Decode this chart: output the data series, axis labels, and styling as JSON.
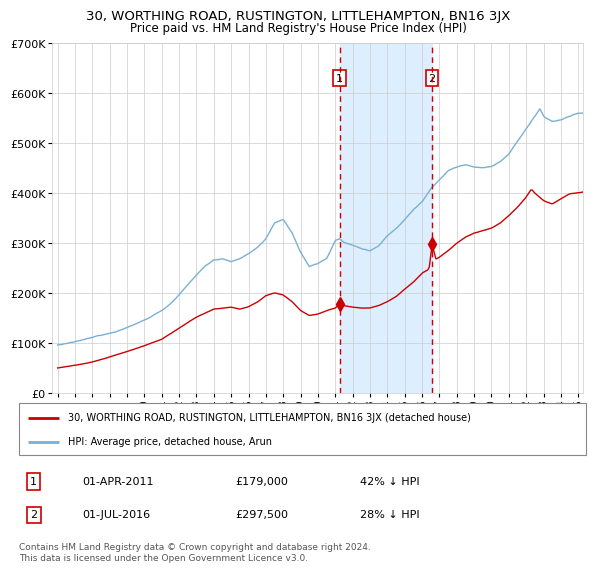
{
  "title": "30, WORTHING ROAD, RUSTINGTON, LITTLEHAMPTON, BN16 3JX",
  "subtitle": "Price paid vs. HM Land Registry's House Price Index (HPI)",
  "ylim": [
    0,
    700000
  ],
  "xlim_start": 1994.7,
  "xlim_end": 2025.3,
  "transaction1": {
    "date_num": 2011.25,
    "price": 179000,
    "label": "1",
    "date_str": "01-APR-2011",
    "pct": "42% ↓ HPI"
  },
  "transaction2": {
    "date_num": 2016.58,
    "price": 297500,
    "label": "2",
    "date_str": "01-JUL-2016",
    "pct": "28% ↓ HPI"
  },
  "property_color": "#cc0000",
  "hpi_color": "#7ab0d4",
  "shaded_color": "#ddeeff",
  "dashed_color": "#cc0000",
  "legend_property_label": "30, WORTHING ROAD, RUSTINGTON, LITTLEHAMPTON, BN16 3JX (detached house)",
  "legend_hpi_label": "HPI: Average price, detached house, Arun",
  "footnote": "Contains HM Land Registry data © Crown copyright and database right 2024.\nThis data is licensed under the Open Government Licence v3.0.",
  "background_color": "#ffffff",
  "grid_color": "#cccccc"
}
